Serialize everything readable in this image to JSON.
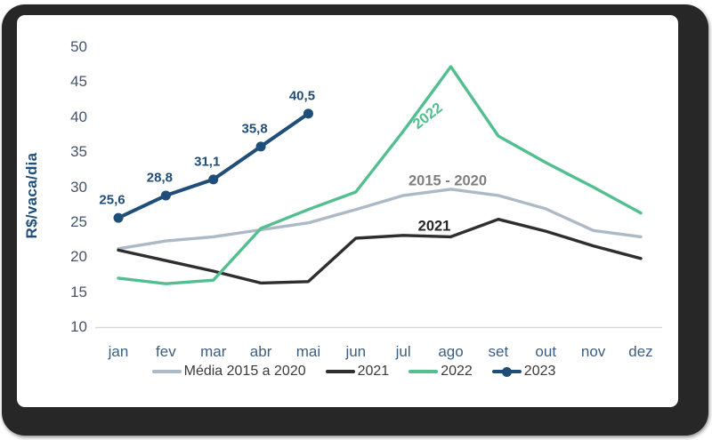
{
  "chart_data": {
    "type": "line",
    "ylabel": "R$/vaca/dia",
    "ylim": [
      10,
      50
    ],
    "yticks": [
      10,
      15,
      20,
      25,
      30,
      35,
      40,
      45,
      50
    ],
    "grid": "baseline-only",
    "legend_position": "bottom",
    "categories": [
      "jan",
      "fev",
      "mar",
      "abr",
      "mai",
      "jun",
      "jul",
      "ago",
      "set",
      "out",
      "nov",
      "dez"
    ],
    "series": [
      {
        "name": "Média 2015 a 2020",
        "color": "#AEB9C6",
        "stroke_width": 3.4,
        "marker": false,
        "values": [
          21.2,
          22.3,
          22.9,
          23.9,
          24.9,
          26.8,
          28.8,
          29.7,
          28.8,
          26.9,
          23.8,
          22.9
        ]
      },
      {
        "name": "2021",
        "color": "#2E2E2E",
        "stroke_width": 3.4,
        "marker": false,
        "values": [
          21.0,
          19.5,
          18.0,
          16.3,
          16.5,
          22.7,
          23.1,
          22.9,
          25.4,
          23.7,
          21.6,
          19.8
        ]
      },
      {
        "name": "2022",
        "color": "#53BE8F",
        "stroke_width": 3.4,
        "marker": false,
        "values": [
          17.0,
          16.2,
          16.7,
          24.1,
          26.8,
          29.3,
          38.0,
          47.2,
          37.3,
          33.5,
          30.0,
          26.3
        ]
      },
      {
        "name": "2023",
        "color": "#1F4E79",
        "stroke_width": 4,
        "marker": true,
        "values": [
          25.6,
          28.8,
          31.1,
          35.8,
          40.5,
          null,
          null,
          null,
          null,
          null,
          null,
          null
        ],
        "data_labels": [
          "25,6",
          "28,8",
          "31,1",
          "35,8",
          "40,5"
        ]
      }
    ],
    "annotations": [
      {
        "text": "2015 - 2020",
        "color": "#7F7F7F",
        "x": 503,
        "y": 204,
        "rotate": 0
      },
      {
        "text": "2021",
        "color": "#262626",
        "x": 488,
        "y": 255,
        "rotate": 0
      },
      {
        "text": "2022",
        "color": "#53BE8F",
        "x": 481,
        "y": 131,
        "rotate": -38
      }
    ],
    "legend": [
      "Média 2015 a 2020",
      "2021",
      "2022",
      "2023"
    ],
    "axis_line_color": "#D9D9D9"
  }
}
